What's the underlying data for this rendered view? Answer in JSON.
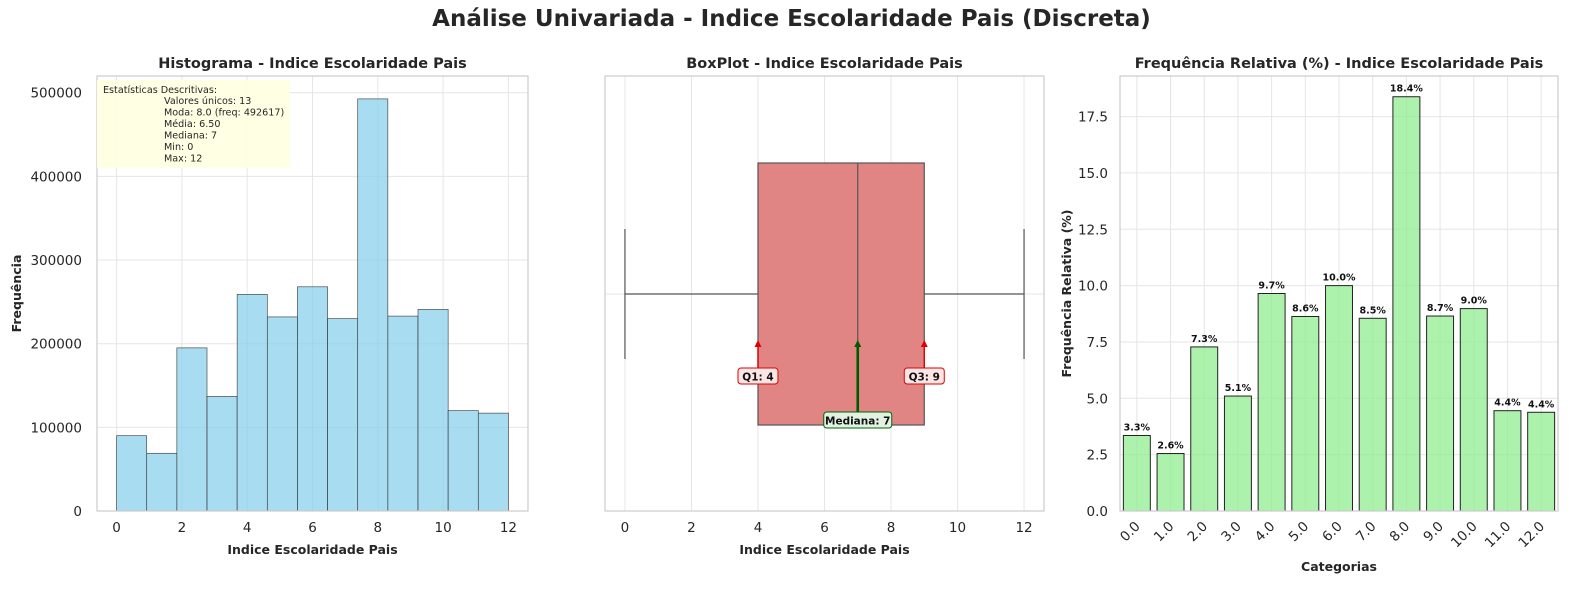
{
  "suptitle": "Análise Univariada - Indice Escolaridade Pais (Discreta)",
  "chart_data": [
    {
      "type": "bar",
      "title": "Histograma - Indice Escolaridade Pais",
      "xlabel": "Indice Escolaridade Pais",
      "ylabel": "Frequência",
      "xlim": [
        -0.6,
        12.6
      ],
      "ylim": [
        0,
        520000
      ],
      "xticks": [
        0,
        2,
        4,
        6,
        8,
        10,
        12
      ],
      "yticks": [
        0,
        100000,
        200000,
        300000,
        400000,
        500000
      ],
      "bin_edges": [
        0,
        0.923,
        1.846,
        2.769,
        3.692,
        4.615,
        5.538,
        6.462,
        7.385,
        8.308,
        9.231,
        10.154,
        11.077,
        12
      ],
      "values": [
        90000,
        69000,
        195000,
        137000,
        259000,
        232000,
        268000,
        230000,
        492617,
        233000,
        241000,
        120000,
        117000
      ],
      "color": "#87ceeb",
      "grid": true,
      "stats_box": {
        "header": "Estatísticas Descritivas:",
        "lines": [
          "Valores únicos: 13",
          "Moda: 8.0 (freq: 492617)",
          "Média: 6.50",
          "Mediana: 7",
          "Min: 0",
          "Max: 12"
        ]
      }
    },
    {
      "type": "box",
      "title": "BoxPlot - Indice Escolaridade Pais",
      "xlabel": "Indice Escolaridade Pais",
      "xlim": [
        -0.6,
        12.6
      ],
      "xticks": [
        0,
        2,
        4,
        6,
        8,
        10,
        12
      ],
      "min": 0,
      "q1": 4,
      "median": 7,
      "q3": 9,
      "max": 12,
      "color": "#e08484",
      "annotations": {
        "q1": "Q1: 4",
        "q3": "Q3: 9",
        "median": "Mediana: 7"
      },
      "grid": true
    },
    {
      "type": "bar",
      "title": "Frequência Relativa (%) - Indice Escolaridade Pais",
      "xlabel": "Categorias",
      "ylabel": "Frequência Relativa (%)",
      "ylim": [
        0,
        19.3
      ],
      "yticks": [
        "0.0",
        "2.5",
        "5.0",
        "7.5",
        "10.0",
        "12.5",
        "15.0",
        "17.5"
      ],
      "categories": [
        "0.0",
        "1.0",
        "2.0",
        "3.0",
        "4.0",
        "5.0",
        "6.0",
        "7.0",
        "8.0",
        "9.0",
        "10.0",
        "11.0",
        "12.0"
      ],
      "values": [
        3.35,
        2.55,
        7.28,
        5.1,
        9.65,
        8.63,
        10.0,
        8.55,
        18.38,
        8.65,
        8.98,
        4.45,
        4.38
      ],
      "data_labels": [
        "3.3%",
        "2.6%",
        "7.3%",
        "5.1%",
        "9.7%",
        "8.6%",
        "10.0%",
        "8.5%",
        "18.4%",
        "8.7%",
        "9.0%",
        "4.4%",
        "4.4%"
      ],
      "color": "#90ee90",
      "grid": true
    }
  ]
}
